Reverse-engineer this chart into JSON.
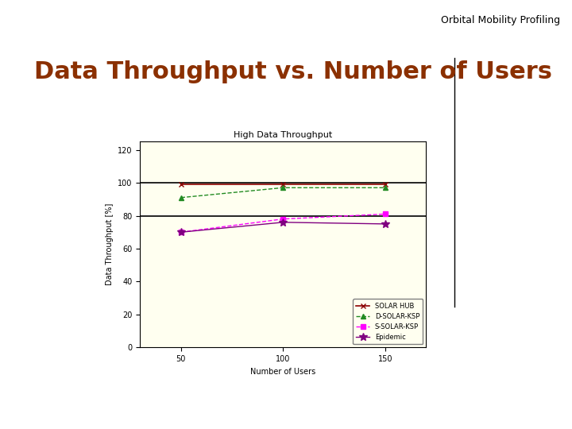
{
  "chart_title": "High Data Throughput",
  "page_title": "Data Throughput vs. Number of Users",
  "header_text": "Orbital Mobility Profiling",
  "xlabel": "Number of Users",
  "ylabel": "Data Throughput [%]",
  "x": [
    50,
    100,
    150
  ],
  "series": [
    {
      "label": "SOLAR HUB",
      "y": [
        99,
        99,
        99
      ],
      "color": "#8B0000",
      "linestyle": "-",
      "marker": "x",
      "linewidth": 1.2,
      "markersize": 5
    },
    {
      "label": "D-SOLAR-KSP",
      "y": [
        91,
        97,
        97
      ],
      "color": "#228B22",
      "linestyle": "--",
      "marker": "^",
      "linewidth": 1.0,
      "markersize": 5
    },
    {
      "label": "S-SOLAR-KSP",
      "y": [
        70,
        78,
        81
      ],
      "color": "#FF00FF",
      "linestyle": "--",
      "marker": "s",
      "linewidth": 1.0,
      "markersize": 4
    },
    {
      "label": "Epidemic",
      "y": [
        70,
        76,
        75
      ],
      "color": "#800080",
      "linestyle": "-",
      "marker": "*",
      "linewidth": 1.0,
      "markersize": 7
    }
  ],
  "hlines": [
    {
      "y": 100,
      "color": "black",
      "linewidth": 1.2
    },
    {
      "y": 80,
      "color": "black",
      "linewidth": 1.2
    }
  ],
  "ylim": [
    0,
    125
  ],
  "xlim": [
    30,
    170
  ],
  "yticks": [
    0,
    20,
    40,
    60,
    80,
    100,
    120
  ],
  "xticks": [
    50,
    100,
    150
  ],
  "bg_color": "#FFFFF0",
  "outer_bg": "#FFFFFF",
  "page_title_color": "#8B3000",
  "chart_title_fontsize": 8,
  "axis_label_fontsize": 7,
  "tick_fontsize": 7,
  "legend_fontsize": 6,
  "page_title_fontsize": 22,
  "header_fontsize": 9,
  "vline_x": 0.795,
  "vline_y0": 0.285,
  "vline_y1": 0.865
}
